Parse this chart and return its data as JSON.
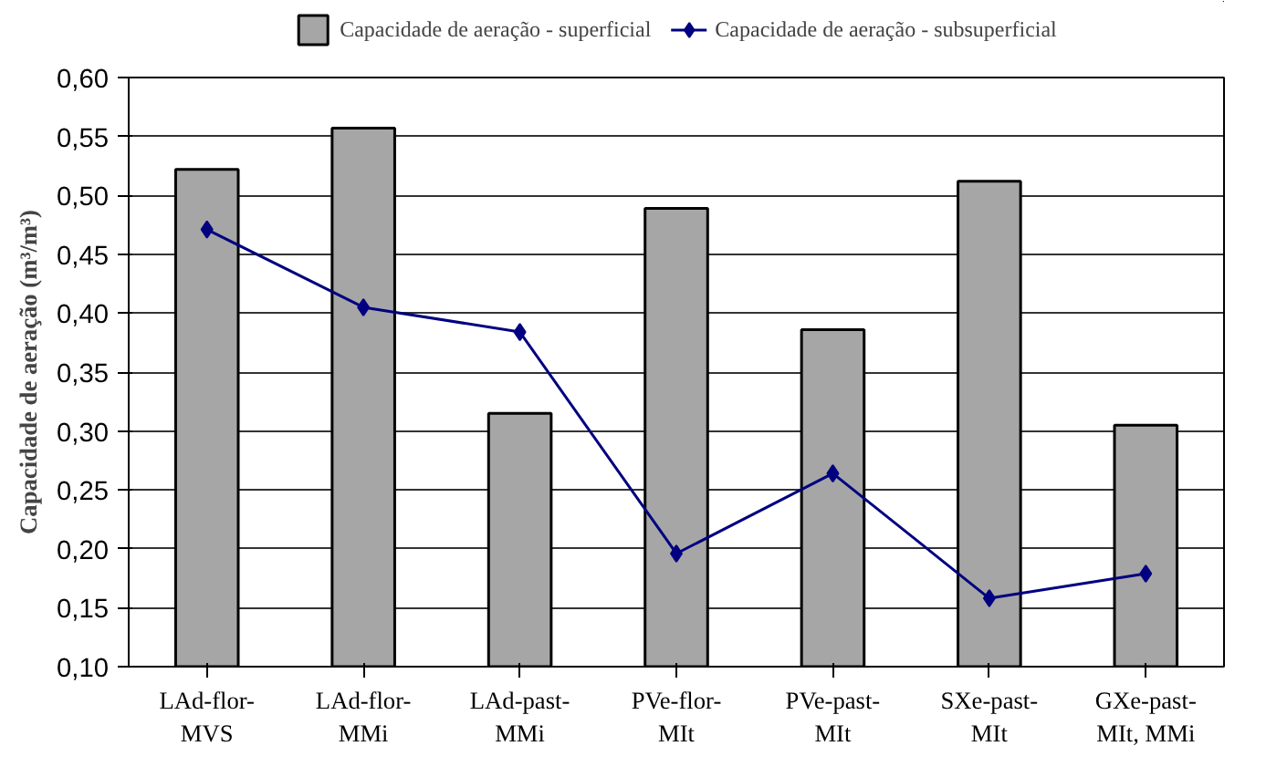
{
  "chart_data": {
    "type": "bar",
    "ylabel": "Capacidade de aeração (m³/m³)",
    "categories": [
      "LAd-flor-MVS",
      "LAd-flor-MMi",
      "LAd-past-MMi",
      "PVe-flor-MIt",
      "PVe-past-MIt",
      "SXe-past-MIt",
      "GXe-past-MIt, MMi"
    ],
    "series": [
      {
        "name": "Capacidade de aeração - superficial",
        "color": "#a6a6a6",
        "values": [
          0.522,
          0.557,
          0.315,
          0.489,
          0.386,
          0.512,
          0.305
        ]
      },
      {
        "name": "Capacidade de aeração - subsuperficial",
        "type": "line",
        "color": "#000080",
        "marker": "diamond",
        "values": [
          0.471,
          0.405,
          0.384,
          0.196,
          0.264,
          0.158,
          0.179
        ]
      }
    ],
    "ylim": [
      0.1,
      0.6
    ],
    "yticks": [
      {
        "value": 0.1,
        "label": "0,10"
      },
      {
        "value": 0.15,
        "label": "0,15"
      },
      {
        "value": 0.2,
        "label": "0,20"
      },
      {
        "value": 0.25,
        "label": "0,25"
      },
      {
        "value": 0.3,
        "label": "0,30"
      },
      {
        "value": 0.35,
        "label": "0,35"
      },
      {
        "value": 0.4,
        "label": "0,40"
      },
      {
        "value": 0.45,
        "label": "0,45"
      },
      {
        "value": 0.5,
        "label": "0,50"
      },
      {
        "value": 0.55,
        "label": "0,55"
      },
      {
        "value": 0.6,
        "label": "0,60"
      }
    ],
    "grid": "y",
    "legend": "top"
  }
}
